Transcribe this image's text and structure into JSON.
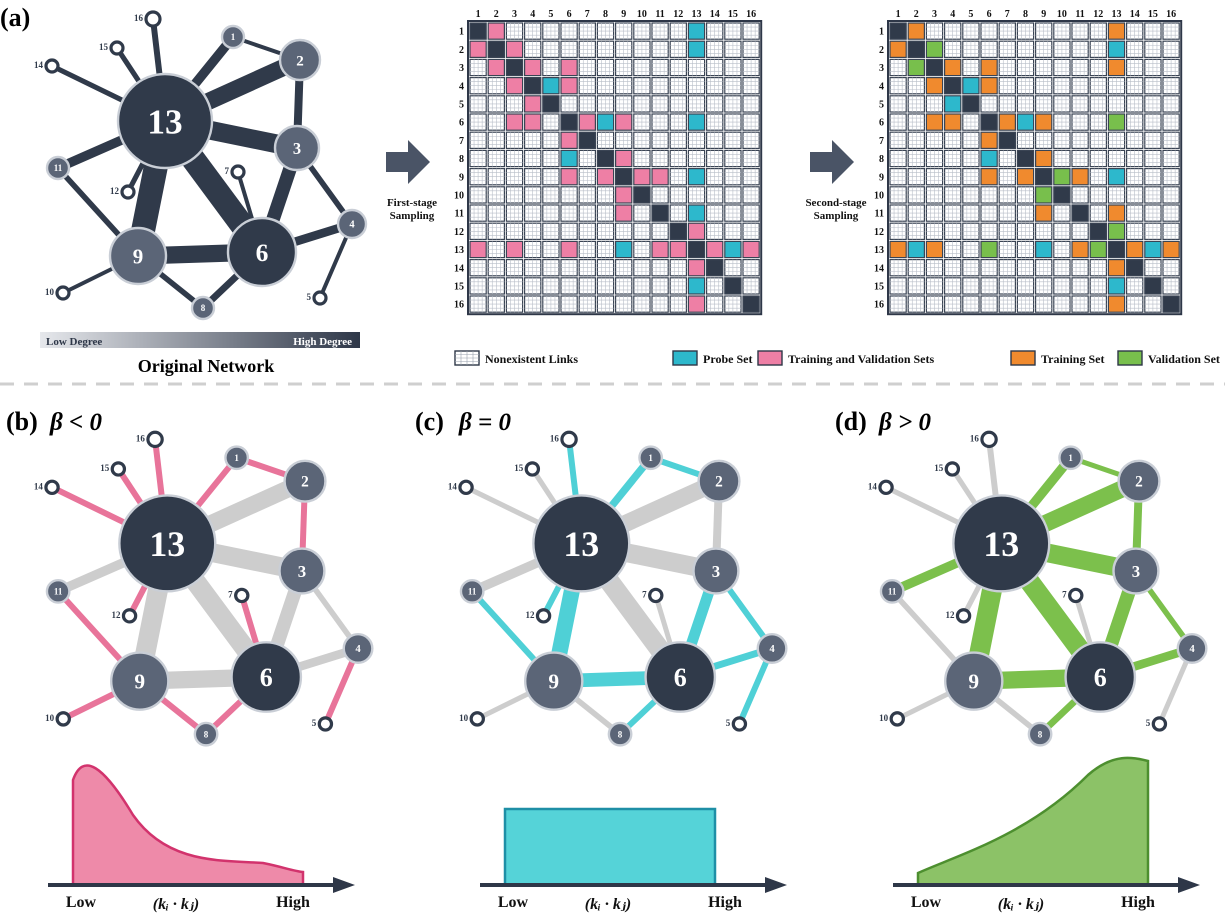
{
  "panels": {
    "a": {
      "tag": "(a)",
      "caption": "Original Network",
      "legend_low": "Low Degree",
      "legend_high": "High Degree",
      "first_stage": "First-stage\nSampling",
      "second_stage": "Second-stage\nSampling"
    },
    "b": {
      "tag": "(b)",
      "beta": "β < 0",
      "color": "#e8749a",
      "fill": "#ee8aa9"
    },
    "c": {
      "tag": "(c)",
      "beta": "β = 0",
      "color": "#2ea6b8",
      "fill": "#55d3d8"
    },
    "d": {
      "tag": "(d)",
      "beta": "β > 0",
      "color": "#5c9e3c",
      "fill": "#8cc267"
    }
  },
  "axis": {
    "low": "Low",
    "high": "High",
    "xlabel": "(kᵢ · kⱼ)"
  },
  "legend": [
    {
      "label": "Nonexistent Links",
      "kind": "grid"
    },
    {
      "label": "Probe Set",
      "color": "#2db8cc"
    },
    {
      "label": "Training and Validation Sets",
      "color": "#ee7fa5"
    },
    {
      "label": "Training Set",
      "color": "#f08a2e"
    },
    {
      "label": "Validation Set",
      "color": "#78bf4c"
    }
  ],
  "colors": {
    "node_dark": "#303a4a",
    "node_mid": "#5b6577",
    "grid_line": "#8a94a4",
    "probe": "#2db8cc",
    "tv": "#ee7fa5",
    "train": "#f08a2e",
    "val": "#78bf4c",
    "gray_edge": "#cdcdcd"
  },
  "network": {
    "nodes": [
      "1",
      "2",
      "3",
      "4",
      "5",
      "6",
      "7",
      "8",
      "9",
      "10",
      "11",
      "12",
      "13",
      "14",
      "15",
      "16"
    ],
    "edges": [
      [
        "1",
        "2"
      ],
      [
        "1",
        "13"
      ],
      [
        "2",
        "3"
      ],
      [
        "2",
        "13"
      ],
      [
        "3",
        "4"
      ],
      [
        "3",
        "6"
      ],
      [
        "3",
        "13"
      ],
      [
        "4",
        "5"
      ],
      [
        "4",
        "6"
      ],
      [
        "6",
        "7"
      ],
      [
        "6",
        "8"
      ],
      [
        "6",
        "9"
      ],
      [
        "6",
        "13"
      ],
      [
        "8",
        "9"
      ],
      [
        "9",
        "10"
      ],
      [
        "9",
        "11"
      ],
      [
        "9",
        "13"
      ],
      [
        "11",
        "13"
      ],
      [
        "12",
        "13"
      ],
      [
        "13",
        "14"
      ],
      [
        "13",
        "15"
      ],
      [
        "13",
        "16"
      ]
    ]
  },
  "matrix": {
    "labels": [
      "1",
      "2",
      "3",
      "4",
      "5",
      "6",
      "7",
      "8",
      "9",
      "10",
      "11",
      "12",
      "13",
      "14",
      "15",
      "16"
    ],
    "first_stage_cells": {
      "probe": [
        [
          1,
          13
        ],
        [
          2,
          13
        ],
        [
          4,
          5
        ],
        [
          6,
          8
        ],
        [
          6,
          13
        ],
        [
          8,
          6
        ],
        [
          9,
          13
        ],
        [
          11,
          13
        ],
        [
          13,
          9
        ],
        [
          13,
          15
        ],
        [
          15,
          13
        ]
      ],
      "tv": [
        [
          1,
          2
        ],
        [
          2,
          1
        ],
        [
          2,
          3
        ],
        [
          3,
          2
        ],
        [
          3,
          4
        ],
        [
          3,
          6
        ],
        [
          4,
          3
        ],
        [
          4,
          6
        ],
        [
          6,
          3
        ],
        [
          6,
          4
        ],
        [
          6,
          7
        ],
        [
          6,
          9
        ],
        [
          7,
          6
        ],
        [
          9,
          6
        ],
        [
          9,
          10
        ],
        [
          9,
          11
        ],
        [
          10,
          9
        ],
        [
          11,
          9
        ],
        [
          12,
          13
        ],
        [
          13,
          1
        ],
        [
          13,
          3
        ],
        [
          13,
          6
        ],
        [
          13,
          11
        ],
        [
          13,
          12
        ],
        [
          13,
          14
        ],
        [
          13,
          16
        ],
        [
          14,
          13
        ],
        [
          16,
          13
        ],
        [
          5,
          4
        ],
        [
          8,
          9
        ],
        [
          9,
          8
        ]
      ]
    },
    "second_stage_cells": {
      "probe": [
        [
          2,
          13
        ],
        [
          4,
          5
        ],
        [
          5,
          4
        ],
        [
          6,
          8
        ],
        [
          8,
          6
        ],
        [
          9,
          13
        ],
        [
          13,
          9
        ],
        [
          13,
          2
        ],
        [
          13,
          15
        ],
        [
          15,
          13
        ]
      ],
      "train": [
        [
          1,
          2
        ],
        [
          2,
          1
        ],
        [
          3,
          4
        ],
        [
          3,
          6
        ],
        [
          4,
          3
        ],
        [
          4,
          6
        ],
        [
          6,
          3
        ],
        [
          6,
          4
        ],
        [
          6,
          7
        ],
        [
          6,
          9
        ],
        [
          7,
          6
        ],
        [
          8,
          9
        ],
        [
          9,
          6
        ],
        [
          9,
          8
        ],
        [
          11,
          9
        ],
        [
          9,
          11
        ],
        [
          13,
          1
        ],
        [
          1,
          13
        ],
        [
          13,
          3
        ],
        [
          3,
          13
        ],
        [
          13,
          11
        ],
        [
          11,
          13
        ],
        [
          13,
          14
        ],
        [
          14,
          13
        ],
        [
          13,
          16
        ],
        [
          16,
          13
        ]
      ],
      "val": [
        [
          2,
          3
        ],
        [
          3,
          2
        ],
        [
          6,
          13
        ],
        [
          13,
          6
        ],
        [
          9,
          10
        ],
        [
          10,
          9
        ],
        [
          12,
          13
        ],
        [
          13,
          12
        ]
      ]
    }
  }
}
